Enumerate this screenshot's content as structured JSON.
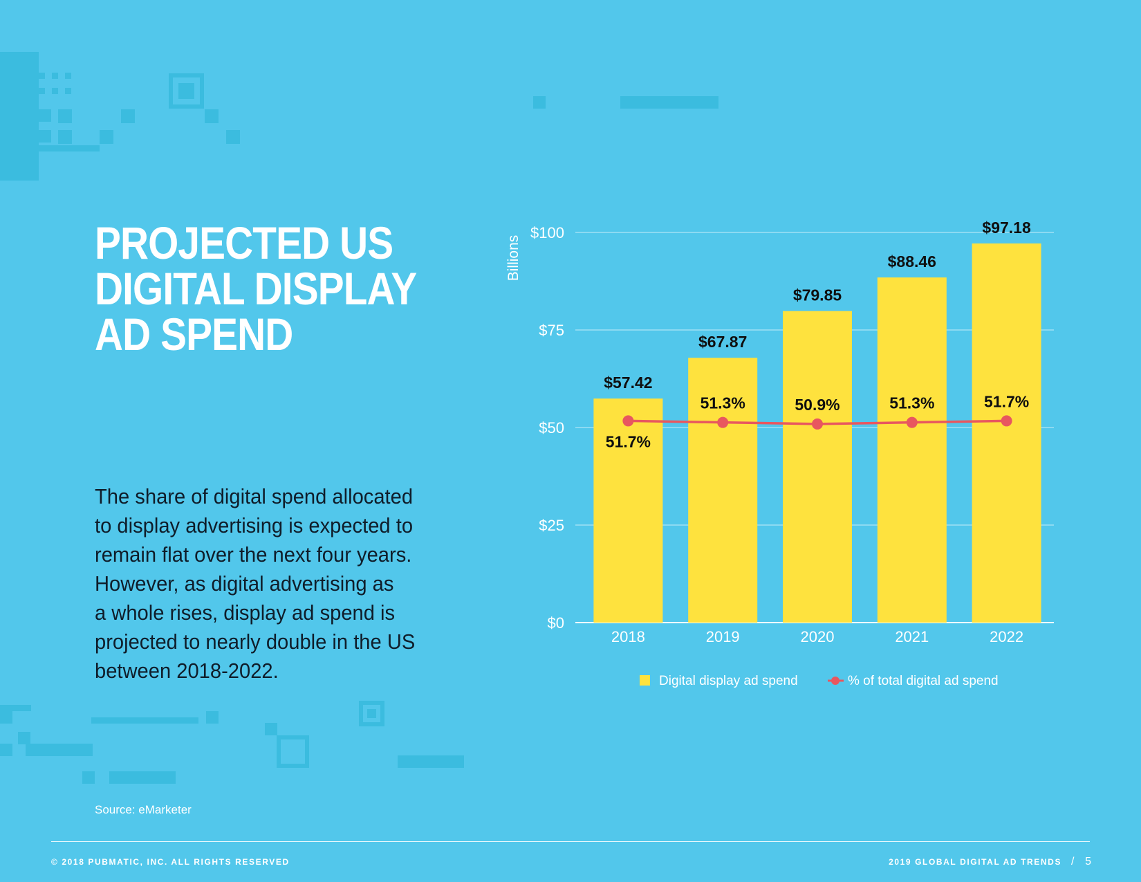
{
  "title_lines": [
    "PROJECTED US",
    "DIGITAL DISPLAY",
    "AD SPEND"
  ],
  "body_lines": [
    "The share of digital spend allocated",
    "to display advertising is expected to",
    "remain flat over the next four years.",
    "However, as digital advertising as",
    "a whole rises, display ad spend is",
    "projected to nearly double in the US",
    "between 2018-2022."
  ],
  "source": "Source: eMarketer",
  "footer": {
    "left": "© 2018 PUBMATIC, INC. ALL RIGHTS RESERVED",
    "right": "2019 GLOBAL DIGITAL AD TRENDS",
    "separator": "/",
    "page": "5"
  },
  "colors": {
    "background": "#52c7eb",
    "bar": "#fee23e",
    "line": "#e8575f",
    "text_dark": "#0f1d2a"
  },
  "chart_data": {
    "type": "bar",
    "categories": [
      "2018",
      "2019",
      "2020",
      "2021",
      "2022"
    ],
    "series": [
      {
        "name": "Digital display ad spend",
        "type": "bar",
        "values": [
          57.42,
          67.87,
          79.85,
          88.46,
          97.18
        ],
        "labels": [
          "$57.42",
          "$67.87",
          "$79.85",
          "$88.46",
          "$97.18"
        ]
      },
      {
        "name": "% of total digital ad spend",
        "type": "line",
        "values": [
          51.7,
          51.3,
          50.9,
          51.3,
          51.7
        ],
        "labels": [
          "51.7%",
          "51.3%",
          "50.9%",
          "51.3%",
          "51.7%"
        ]
      }
    ],
    "ylabel": "Billions",
    "ylim": [
      0,
      100
    ],
    "yticks": [
      0,
      25,
      50,
      75,
      100
    ],
    "ytick_labels": [
      "$0",
      "$25",
      "$50",
      "$75",
      "$100"
    ],
    "grid": true,
    "legend": "bottom"
  }
}
